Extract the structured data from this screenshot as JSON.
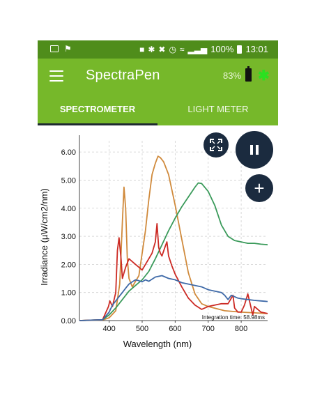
{
  "status_bar": {
    "percent": "100%",
    "time": "13:01"
  },
  "app_bar": {
    "title": "SpectraPen",
    "device_battery": "83%"
  },
  "tabs": [
    {
      "label": "SPECTROMETER",
      "active": true
    },
    {
      "label": "LIGHT METER",
      "active": false
    }
  ],
  "colors": {
    "status_bar": "#4f8d1b",
    "app_bar": "#76b82a",
    "fab": "#1b2b3f",
    "bluetooth_accent": "#2ae020"
  },
  "icons": {
    "menu": "hamburger-menu-icon",
    "battery": "battery-icon",
    "bluetooth": "bluetooth-icon",
    "fullscreen": "fullscreen-icon",
    "pause": "pause-icon",
    "add": "plus-icon"
  },
  "chart_data": {
    "type": "line",
    "xlabel": "Wavelength (nm)",
    "ylabel": "Irradiance (µW/cm2/nm)",
    "annotation": "Integration time: 58.98ms",
    "xlim": [
      310,
      880
    ],
    "ylim": [
      0,
      6.4
    ],
    "x_ticks": [
      400,
      500,
      600,
      700,
      800
    ],
    "x_tick_labels": [
      "400",
      "500",
      "600",
      "700",
      "800"
    ],
    "y_ticks": [
      0,
      1,
      2,
      3,
      4,
      5,
      6
    ],
    "y_tick_labels": [
      "0.00",
      "1.00",
      "2.00",
      "3.00",
      "4.00",
      "5.00",
      "6.00"
    ],
    "grid": true,
    "series": [
      {
        "color": "#d08a3c",
        "x": [
          310,
          380,
          400,
          420,
          432,
          440,
          445,
          450,
          455,
          460,
          470,
          490,
          510,
          520,
          530,
          540,
          548,
          555,
          565,
          580,
          600,
          620,
          640,
          660,
          680,
          700,
          750,
          800,
          850,
          880
        ],
        "y": [
          0.0,
          0.02,
          0.1,
          0.35,
          1.3,
          3.5,
          4.75,
          4.0,
          2.2,
          1.5,
          1.2,
          1.6,
          3.2,
          4.3,
          5.2,
          5.6,
          5.85,
          5.8,
          5.65,
          5.2,
          4.1,
          2.9,
          1.7,
          0.95,
          0.6,
          0.5,
          0.35,
          0.3,
          0.27,
          0.25
        ]
      },
      {
        "color": "#3a9a5a",
        "x": [
          310,
          380,
          400,
          420,
          440,
          460,
          480,
          500,
          520,
          540,
          560,
          580,
          600,
          620,
          640,
          660,
          670,
          680,
          700,
          720,
          740,
          760,
          780,
          800,
          820,
          840,
          860,
          880
        ],
        "y": [
          0.0,
          0.03,
          0.2,
          0.45,
          0.75,
          1.05,
          1.25,
          1.45,
          1.75,
          2.2,
          2.7,
          3.2,
          3.65,
          4.05,
          4.4,
          4.75,
          4.9,
          4.88,
          4.6,
          4.1,
          3.4,
          3.0,
          2.85,
          2.8,
          2.75,
          2.75,
          2.72,
          2.7
        ]
      },
      {
        "color": "#cc2a24",
        "x": [
          310,
          380,
          398,
          402,
          410,
          420,
          425,
          430,
          436,
          440,
          450,
          460,
          480,
          500,
          510,
          530,
          540,
          545,
          550,
          555,
          560,
          570,
          575,
          580,
          590,
          600,
          620,
          640,
          660,
          680,
          700,
          720,
          740,
          760,
          775,
          780,
          790,
          800,
          810,
          820,
          835,
          840,
          860,
          880
        ],
        "y": [
          0.0,
          0.03,
          0.5,
          0.7,
          0.5,
          1.0,
          2.5,
          2.95,
          2.2,
          1.5,
          1.9,
          2.2,
          2.0,
          1.8,
          2.0,
          2.4,
          2.8,
          3.45,
          2.6,
          2.4,
          2.3,
          2.65,
          2.8,
          2.3,
          1.95,
          1.65,
          1.2,
          0.8,
          0.55,
          0.4,
          0.5,
          0.55,
          0.6,
          0.6,
          0.9,
          0.45,
          0.3,
          0.3,
          0.55,
          0.95,
          0.2,
          0.5,
          0.3,
          0.25
        ]
      },
      {
        "color": "#3f6aa8",
        "x": [
          310,
          380,
          400,
          410,
          420,
          430,
          440,
          450,
          460,
          470,
          480,
          490,
          500,
          510,
          520,
          540,
          560,
          580,
          600,
          620,
          640,
          660,
          680,
          700,
          720,
          740,
          750,
          760,
          770,
          790,
          800,
          820,
          840,
          860,
          880
        ],
        "y": [
          0.0,
          0.03,
          0.3,
          0.55,
          0.7,
          0.85,
          1.0,
          1.15,
          1.3,
          1.38,
          1.45,
          1.42,
          1.38,
          1.45,
          1.4,
          1.55,
          1.6,
          1.5,
          1.45,
          1.35,
          1.3,
          1.25,
          1.2,
          1.1,
          1.05,
          1.0,
          0.9,
          0.75,
          0.9,
          0.8,
          0.78,
          0.75,
          0.72,
          0.7,
          0.68
        ]
      }
    ]
  }
}
